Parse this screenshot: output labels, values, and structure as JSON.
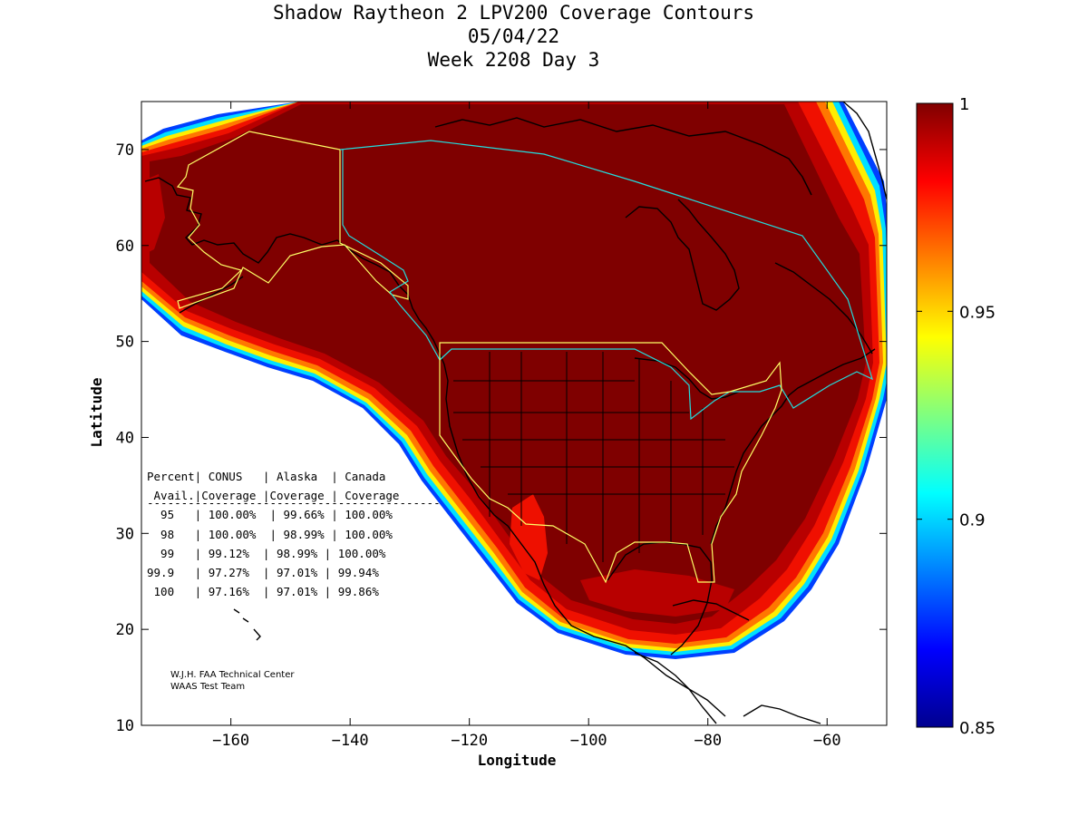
{
  "title_lines": [
    "Shadow Raytheon 2 LPV200 Coverage Contours",
    "05/04/22",
    "Week 2208 Day 3"
  ],
  "axes": {
    "xlabel": "Longitude",
    "ylabel": "Latitude",
    "xlim": [
      -175,
      -50
    ],
    "ylim": [
      10,
      75
    ],
    "xticks": [
      -160,
      -140,
      -120,
      -100,
      -80,
      -60
    ],
    "yticks": [
      10,
      20,
      30,
      40,
      50,
      60,
      70
    ]
  },
  "colorbar": {
    "min": 0.85,
    "max": 1,
    "ticks": [
      "1",
      "0.95",
      "0.9",
      "0.85"
    ],
    "colormap": "jet"
  },
  "table": {
    "header1": "Percent| CONUS   | Alaska  | Canada",
    "header2": " Avail.|Coverage |Coverage | Coverage",
    "separator": "-------------------------------------------",
    "rows": [
      "  95   | 100.00%  | 99.66% | 100.00%",
      "  98   | 100.00%  | 98.99% | 100.00%",
      "  99   | 99.12%  | 98.99% | 100.00%",
      "99.9   | 97.27%  | 97.01% | 99.94%",
      " 100   | 97.16%  | 97.01% | 99.86%"
    ]
  },
  "credits": [
    "W.J.H. FAA Technical Center",
    "WAAS Test Team"
  ],
  "colors": {
    "background": "#ffffff",
    "full_coverage": "#7f0000",
    "alaska_boundary": "#ffff66",
    "conus_boundary": "#ffff66",
    "canada_boundary": "#22dddd",
    "coastline": "#000000"
  }
}
